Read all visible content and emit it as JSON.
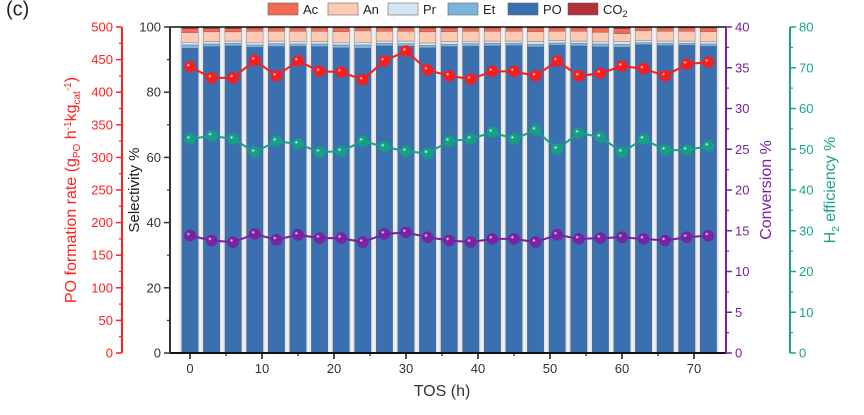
{
  "panel_label": "(c)",
  "chart_data": {
    "type": "bar",
    "subtype": "stacked-bar-with-lines",
    "x": [
      0,
      3,
      6,
      9,
      12,
      15,
      18,
      21,
      24,
      27,
      30,
      33,
      36,
      39,
      42,
      45,
      48,
      51,
      54,
      57,
      60,
      63,
      66,
      69,
      72
    ],
    "xlabel": "TOS (h)",
    "xticks": [
      0,
      10,
      20,
      30,
      40,
      50,
      60,
      70
    ],
    "xlim": [
      -2,
      74
    ],
    "grid": false,
    "legend_position": "top",
    "axes": {
      "left_outer": {
        "label_parts": [
          "PO formation rate (g",
          "PO",
          " h",
          "-1",
          "kg",
          "cat",
          "-1",
          ")"
        ],
        "range": [
          0,
          500
        ],
        "ticks": [
          0,
          50,
          100,
          150,
          200,
          250,
          300,
          350,
          400,
          450,
          500
        ],
        "color": "#ff2020"
      },
      "left_inner": {
        "label": "Selectivity %",
        "range": [
          0,
          100
        ],
        "ticks": [
          0,
          20,
          40,
          60,
          80,
          100
        ],
        "color": "#333333"
      },
      "right_inner": {
        "label": "Conversion %",
        "range": [
          0,
          40
        ],
        "ticks": [
          0,
          5,
          10,
          15,
          20,
          25,
          30,
          35,
          40
        ],
        "color": "#7b1fa2"
      },
      "right_outer": {
        "label_parts": [
          "H",
          "2",
          " efficiency %"
        ],
        "range": [
          0,
          80
        ],
        "ticks": [
          0,
          10,
          20,
          30,
          40,
          50,
          60,
          70,
          80
        ],
        "color": "#1aa58a"
      }
    },
    "stack_series": [
      {
        "name": "PO",
        "label": "PO",
        "color": "#3a6fb0",
        "values": [
          93.5,
          94.0,
          94.2,
          93.8,
          94.0,
          94.1,
          94.0,
          93.6,
          93.5,
          94.2,
          94.1,
          93.6,
          94.0,
          94.1,
          94.2,
          94.3,
          93.9,
          94.4,
          94.2,
          93.9,
          93.8,
          94.6,
          94.3,
          94.4,
          94.1
        ]
      },
      {
        "name": "Et",
        "label": "Et",
        "color": "#7db4dc",
        "values": [
          1.0,
          0.8,
          0.8,
          0.7,
          0.9,
          0.7,
          0.8,
          0.9,
          1.0,
          0.8,
          0.8,
          0.8,
          0.7,
          0.8,
          0.8,
          0.7,
          0.8,
          0.7,
          0.8,
          0.9,
          0.9,
          0.6,
          0.7,
          0.6,
          0.7
        ]
      },
      {
        "name": "Pr",
        "label": "Pr",
        "color": "#d5e5f5",
        "values": [
          0.8,
          0.7,
          0.7,
          0.8,
          0.8,
          0.8,
          0.7,
          0.8,
          0.8,
          0.7,
          0.8,
          0.7,
          0.8,
          0.7,
          0.7,
          0.7,
          0.8,
          0.7,
          0.7,
          0.8,
          0.8,
          0.7,
          0.7,
          0.7,
          0.8
        ]
      },
      {
        "name": "An",
        "label": "An",
        "color": "#fdcab4",
        "values": [
          3.0,
          3.0,
          2.8,
          3.4,
          3.0,
          3.1,
          3.2,
          3.3,
          3.5,
          3.0,
          3.0,
          3.4,
          3.1,
          3.1,
          3.0,
          3.0,
          3.1,
          2.9,
          3.0,
          2.8,
          2.4,
          3.0,
          3.0,
          3.0,
          3.0
        ]
      },
      {
        "name": "Ac",
        "label": "Ac",
        "color": "#f26b52",
        "values": [
          1.2,
          1.0,
          1.0,
          0.9,
          1.0,
          1.0,
          1.0,
          1.1,
          0.9,
          1.0,
          1.0,
          1.1,
          1.0,
          1.0,
          1.0,
          1.0,
          1.1,
          1.0,
          1.0,
          1.3,
          1.6,
          0.9,
          1.0,
          1.0,
          1.1
        ]
      },
      {
        "name": "CO2",
        "label_main": "CO",
        "label_sub": "2",
        "color": "#b2303a",
        "values": [
          0.5,
          0.5,
          0.5,
          0.4,
          0.3,
          0.3,
          0.3,
          0.3,
          0.3,
          0.3,
          0.3,
          0.4,
          0.4,
          0.3,
          0.3,
          0.3,
          0.3,
          0.3,
          0.3,
          0.3,
          0.5,
          0.2,
          0.3,
          0.3,
          0.3
        ]
      }
    ],
    "line_series": [
      {
        "name": "PO formation rate",
        "axis": "left_outer",
        "color": "#ff1a1a",
        "values": [
          439,
          422,
          422,
          449,
          425,
          448,
          432,
          431,
          419,
          448,
          463,
          434,
          425,
          420,
          432,
          432,
          425,
          448,
          425,
          429,
          440,
          436,
          425,
          443,
          446
        ]
      },
      {
        "name": "H2 efficiency",
        "axis": "right_outer",
        "color": "#16a085",
        "values": [
          52.5,
          53.3,
          52.5,
          49.3,
          52.0,
          51.3,
          49.3,
          49.5,
          52.0,
          50.6,
          49.5,
          49.0,
          52.0,
          52.5,
          54.2,
          52.5,
          54.7,
          50.0,
          54.0,
          53.0,
          49.3,
          52.5,
          49.8,
          49.8,
          50.8
        ]
      },
      {
        "name": "Conversion",
        "axis": "right_inner",
        "color": "#7b1fa2",
        "values": [
          14.4,
          13.8,
          13.6,
          14.6,
          13.9,
          14.5,
          14.1,
          14.1,
          13.6,
          14.6,
          14.8,
          14.2,
          13.8,
          13.6,
          14.0,
          14.0,
          13.6,
          14.5,
          14.0,
          14.1,
          14.2,
          14.0,
          13.8,
          14.2,
          14.4
        ]
      }
    ],
    "legend": [
      "Ac",
      "An",
      "Pr",
      "Et",
      "PO",
      "CO2"
    ]
  }
}
